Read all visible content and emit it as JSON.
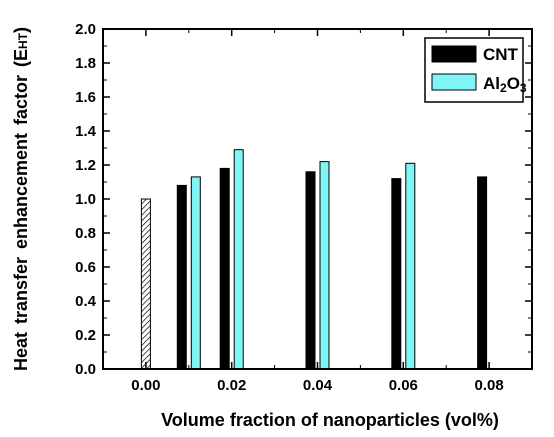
{
  "chart_data": {
    "type": "bar",
    "xlabel": "Volume fraction of nanoparticles (vol%)",
    "ylabel": {
      "main": "Heat transfer enhancement factor (E",
      "sub": "HT",
      "end": ")"
    },
    "xlim": [
      -0.01,
      0.09
    ],
    "ylim": [
      0,
      2.0
    ],
    "xticks": [
      "0.00",
      "0.02",
      "0.04",
      "0.06",
      "0.08"
    ],
    "yticks": [
      "0.0",
      "0.2",
      "0.4",
      "0.6",
      "0.8",
      "1.0",
      "1.2",
      "1.4",
      "1.6",
      "1.8",
      "2.0"
    ],
    "legend_position": "top-right",
    "baseline": {
      "x": 0.0,
      "value": 1.0
    },
    "series": [
      {
        "name": "CNT",
        "color": "#000000",
        "points": [
          {
            "x": 0.01,
            "value": 1.08
          },
          {
            "x": 0.02,
            "value": 1.18
          },
          {
            "x": 0.04,
            "value": 1.16
          },
          {
            "x": 0.06,
            "value": 1.12
          },
          {
            "x": 0.08,
            "value": 1.13
          }
        ]
      },
      {
        "name": "Al2O3",
        "name_parts": [
          "Al",
          "2",
          "O",
          "3"
        ],
        "color": "#7ff5f5",
        "points": [
          {
            "x": 0.01,
            "value": 1.13
          },
          {
            "x": 0.02,
            "value": 1.29
          },
          {
            "x": 0.04,
            "value": 1.22
          },
          {
            "x": 0.06,
            "value": 1.21
          }
        ]
      }
    ]
  }
}
